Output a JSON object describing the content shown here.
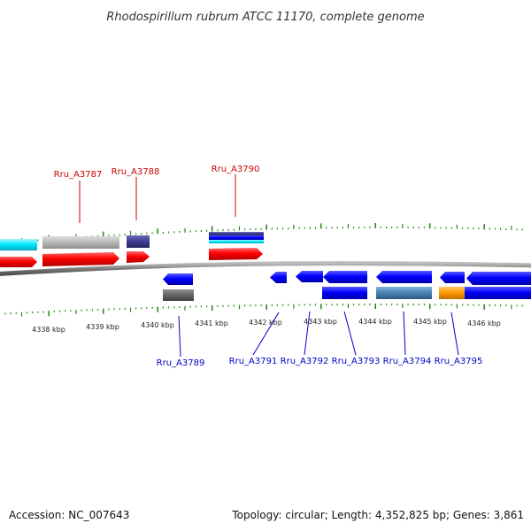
{
  "title": "Rhodospirillum rubrum ATCC 11170, complete genome",
  "footer": {
    "accession": "Accession: NC_007643",
    "topology": "Topology: circular; Length: 4,352,825 bp; Genes: 3,861"
  },
  "colors": {
    "backbone": "#808080",
    "tick": "#2a8a1a",
    "top_label": "#cc0000",
    "bottom_label": "#0000cc",
    "cds_red": "#ff0000",
    "cds_blue": "#0000ff",
    "cyan": "#00e5ff",
    "gray": "#b8b8b8",
    "dark_gray": "#666666",
    "navy": "#3d3d8f",
    "steel_blue": "#4682b4",
    "orange": "#ff9900"
  },
  "scale_labels": [
    "4338 kbp",
    "4339 kbp",
    "4340 kbp",
    "4341 kbp",
    "4342 kbp",
    "4343 kbp",
    "4344 kbp",
    "4345 kbp",
    "4346 kbp"
  ],
  "top_genes": [
    "Rru_A3787",
    "Rru_A3788",
    "Rru_A3790"
  ],
  "bottom_genes": [
    "Rru_A3789",
    "Rru_A3791",
    "Rru_A3792",
    "Rru_A3793",
    "Rru_A3794",
    "Rru_A3795"
  ]
}
